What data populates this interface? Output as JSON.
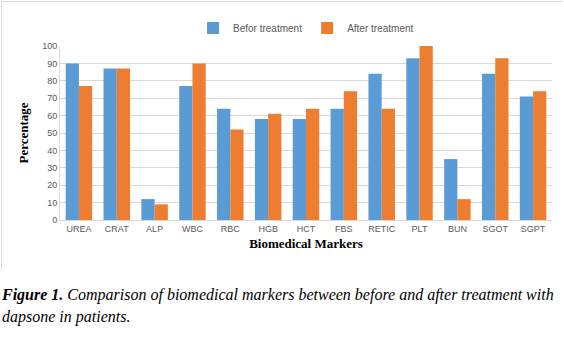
{
  "chart_data": {
    "type": "bar",
    "x_label": "Biomedical Markers",
    "y_label": "Percentage",
    "categories": [
      "UREA",
      "CRAT",
      "ALP",
      "WBC",
      "RBC",
      "HGB",
      "HCT",
      "FBS",
      "RETIC",
      "PLT",
      "BUN",
      "SGOT",
      "SGPT"
    ],
    "series": [
      {
        "name": "Befor treatment",
        "color": "#5b9bd5",
        "values": [
          90,
          87,
          12,
          77,
          64,
          58,
          58,
          64,
          84,
          93,
          35,
          84,
          71
        ]
      },
      {
        "name": "After treatment",
        "color": "#ed7d31",
        "values": [
          77,
          87,
          9,
          90,
          52,
          61,
          64,
          74,
          64,
          100,
          12,
          93,
          74
        ]
      }
    ],
    "ylim": [
      0,
      100
    ],
    "yticks": [
      0,
      10,
      20,
      30,
      40,
      50,
      60,
      70,
      80,
      90,
      100
    ],
    "grid": true,
    "legend": "top",
    "caption": {
      "label": "Figure 1.",
      "text": "Comparison of biomedical markers between before and after treatment with dapsone in patients."
    }
  }
}
